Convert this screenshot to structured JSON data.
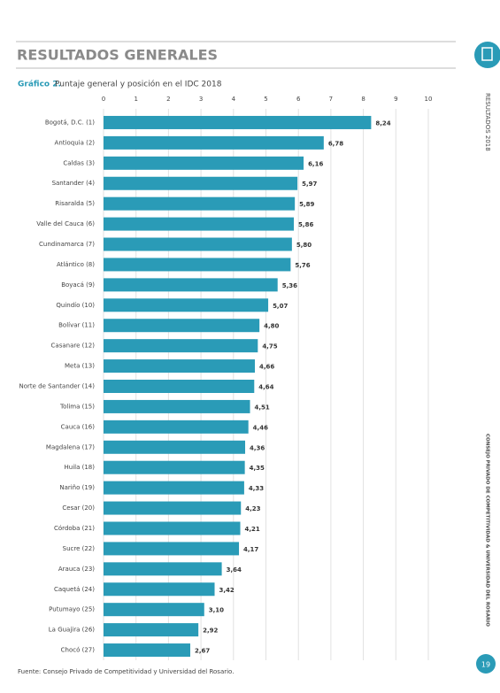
{
  "page": {
    "section": "RESULTADOS GENERALES",
    "side_top": "RESULTADOS 2018",
    "side_bottom": "CONSEJO PRIVADO DE COMPETITIVIDAD & UNIVERSIDAD DEL ROSARIO",
    "source": "Fuente: Consejo Privado de Competitividad y Universidad del Rosario.",
    "page_number": "19"
  },
  "chart_data": {
    "type": "hbar",
    "label": "Gráfico 2.",
    "title": "Puntaje general y posición en el IDC 2018",
    "categories": [
      "Bogotá, D.C. (1)",
      "Antioquia (2)",
      "Caldas (3)",
      "Santander (4)",
      "Risaralda (5)",
      "Valle del Cauca (6)",
      "Cundinamarca (7)",
      "Atlántico (8)",
      "Boyacá (9)",
      "Quindío (10)",
      "Bolívar (11)",
      "Casanare (12)",
      "Meta (13)",
      "Norte de Santander (14)",
      "Tolima (15)",
      "Cauca (16)",
      "Magdalena (17)",
      "Huila (18)",
      "Nariño (19)",
      "Cesar (20)",
      "Córdoba (21)",
      "Sucre (22)",
      "Arauca (23)",
      "Caquetá (24)",
      "Putumayo (25)",
      "La Guajira (26)",
      "Chocó (27)"
    ],
    "values": [
      8.24,
      6.78,
      6.16,
      5.97,
      5.89,
      5.86,
      5.8,
      5.76,
      5.36,
      5.07,
      4.8,
      4.75,
      4.66,
      4.64,
      4.51,
      4.46,
      4.36,
      4.35,
      4.33,
      4.23,
      4.21,
      4.17,
      3.64,
      3.42,
      3.1,
      2.92,
      2.67
    ],
    "value_labels": [
      "8,24",
      "6,78",
      "6,16",
      "5,97",
      "5,89",
      "5,86",
      "5,80",
      "5,76",
      "5,36",
      "5,07",
      "4,80",
      "4,75",
      "4,66",
      "4,64",
      "4,51",
      "4,46",
      "4,36",
      "4,35",
      "4,33",
      "4,23",
      "4,21",
      "4,17",
      "3,64",
      "3,42",
      "3,10",
      "2,92",
      "2,67"
    ],
    "color": "#2a9bb7",
    "xlim": [
      0,
      10
    ],
    "xticks": [
      0,
      1,
      2,
      3,
      4,
      5,
      6,
      7,
      8,
      9,
      10
    ],
    "grid": true
  }
}
